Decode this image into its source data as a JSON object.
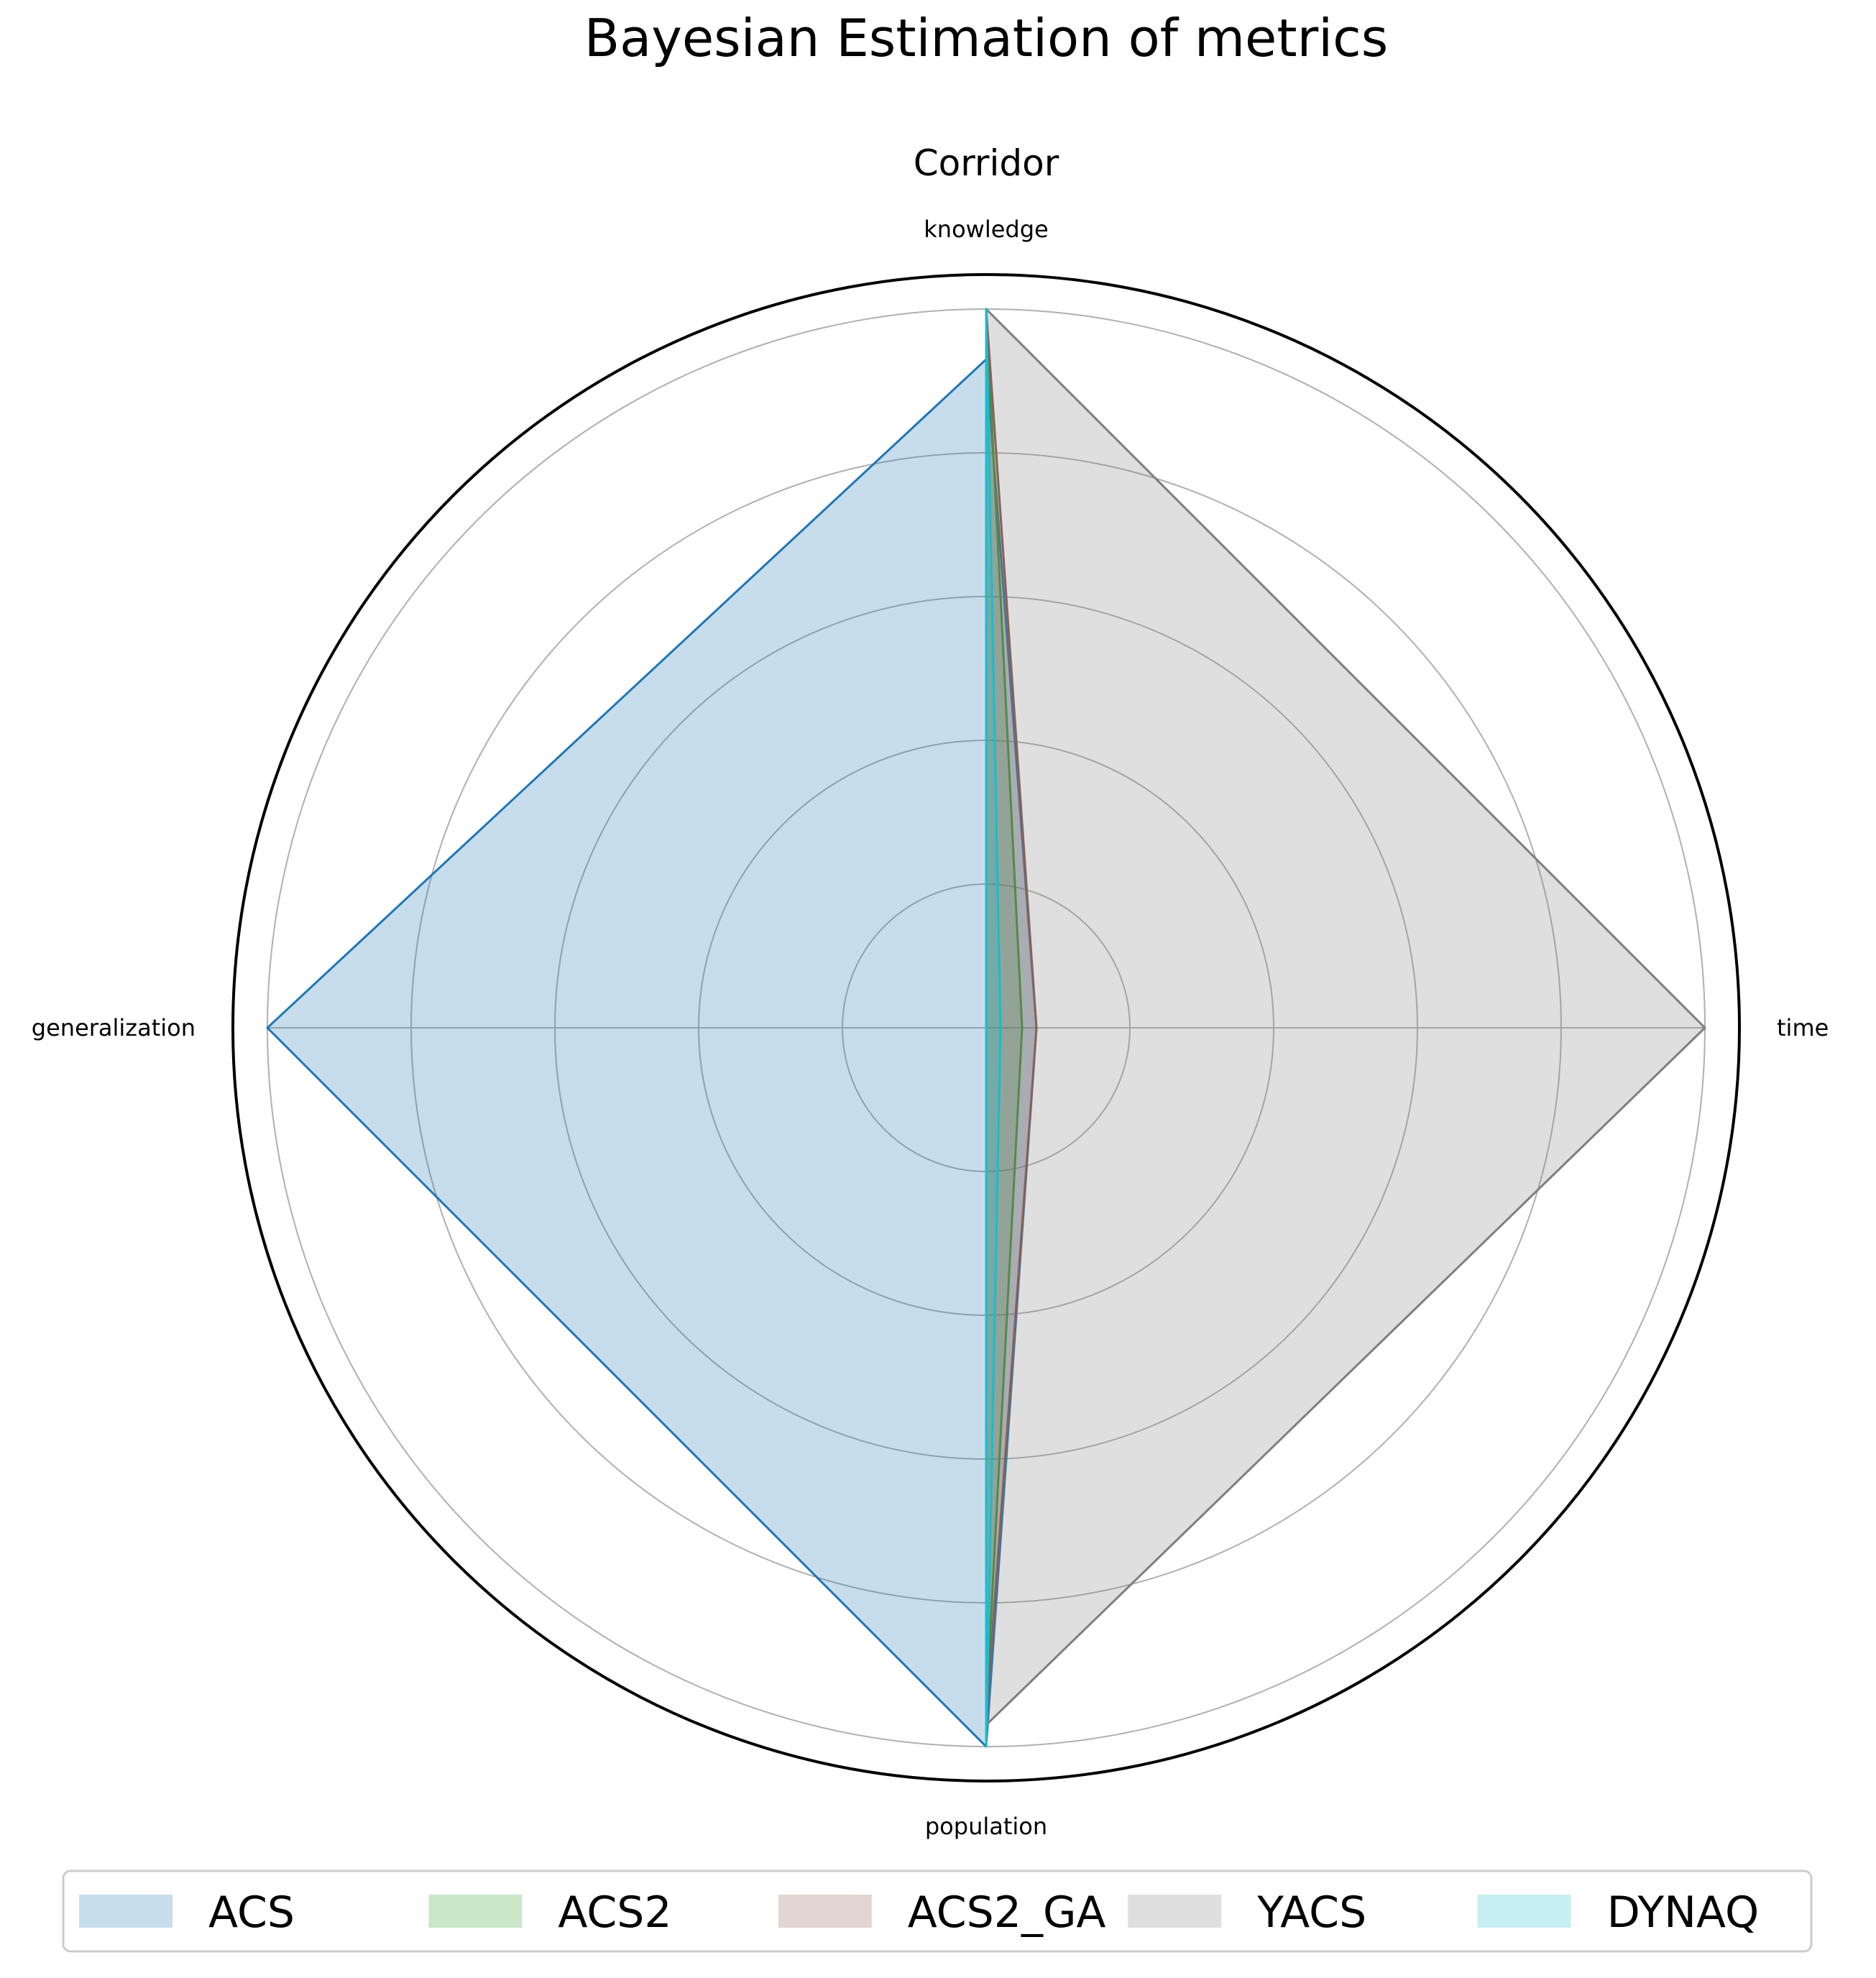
{
  "chart_data": {
    "type": "radar",
    "title": "Bayesian Estimation of metrics",
    "subtitle": "Corridor",
    "axes": [
      "knowledge",
      "time",
      "population",
      "generalization"
    ],
    "rlim": [
      0,
      1
    ],
    "rings": [
      0.2,
      0.4,
      0.6,
      0.8,
      1.0
    ],
    "grid": true,
    "legend_position": "bottom",
    "series": [
      {
        "name": "ACS",
        "color": "#1f77b4",
        "values": [
          0.93,
          0.07,
          1.0,
          1.0
        ]
      },
      {
        "name": "ACS2",
        "color": "#2ca02c",
        "values": [
          1.0,
          0.05,
          0.95,
          0.0
        ]
      },
      {
        "name": "ACS2_GA",
        "color": "#8c564b",
        "values": [
          1.0,
          0.07,
          0.96,
          0.0
        ]
      },
      {
        "name": "YACS",
        "color": "#7f7f7f",
        "values": [
          1.0,
          1.0,
          0.97,
          0.0
        ]
      },
      {
        "name": "DYNAQ",
        "color": "#17becf",
        "values": [
          1.0,
          0.02,
          1.0,
          0.0
        ]
      }
    ]
  }
}
